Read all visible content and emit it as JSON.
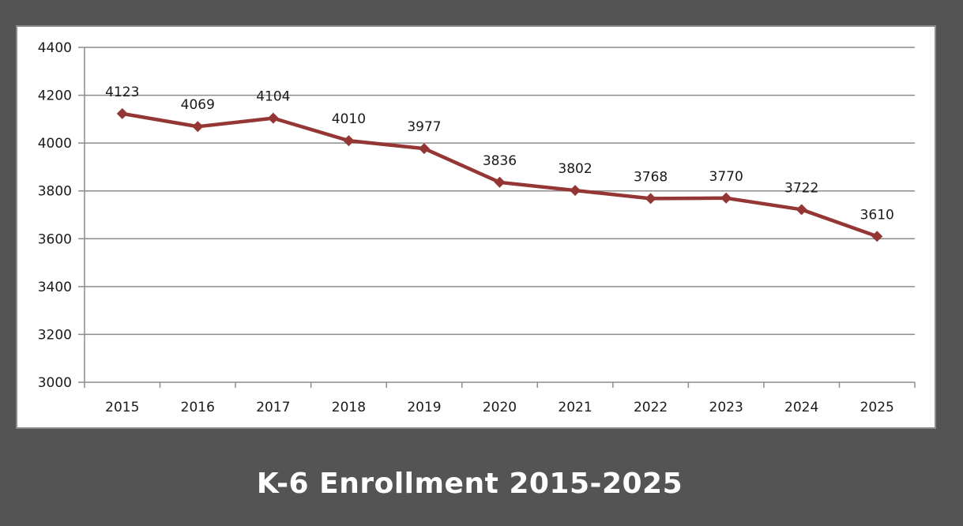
{
  "chart_data": {
    "type": "line",
    "title": "K-6 Enrollment 2015-2025",
    "xlabel": "",
    "ylabel": "",
    "categories": [
      "2015",
      "2016",
      "2017",
      "2018",
      "2019",
      "2020",
      "2021",
      "2022",
      "2023",
      "2024",
      "2025"
    ],
    "series": [
      {
        "name": "K-6 Enrollment",
        "values": [
          4123,
          4069,
          4104,
          4010,
          3977,
          3836,
          3802,
          3768,
          3770,
          3722,
          3610
        ],
        "color": "#943634"
      }
    ],
    "ylim": [
      3000,
      4400
    ],
    "yticks": [
      3000,
      3200,
      3400,
      3600,
      3800,
      4000,
      4200,
      4400
    ],
    "grid": true,
    "legend": "none",
    "data_labels": true
  },
  "colors": {
    "background": "#545454",
    "panel": "#ffffff",
    "gridline": "#8c8c8c",
    "series": "#943634",
    "title_text": "#ffffff"
  }
}
